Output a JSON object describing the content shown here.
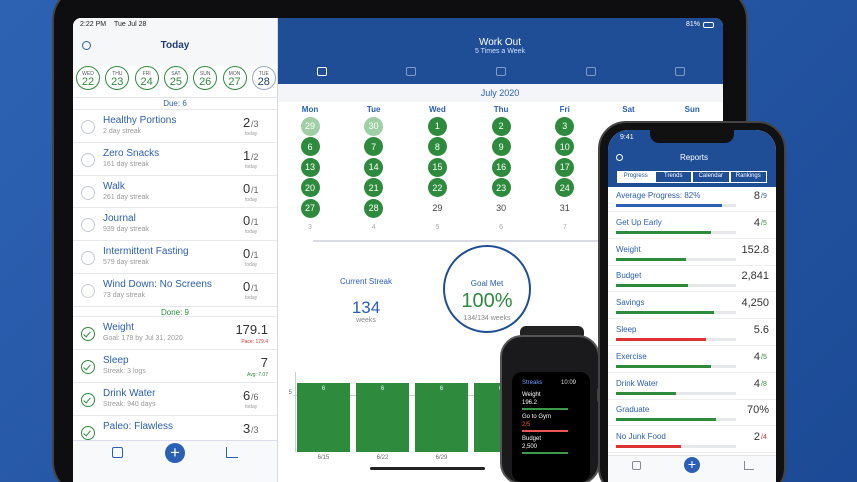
{
  "status": {
    "time": "2:22 PM",
    "date": "Tue Jul 28",
    "battery": "81%"
  },
  "sidebar": {
    "title": "Today",
    "days": [
      {
        "dow": "WED",
        "day": "22"
      },
      {
        "dow": "THU",
        "day": "23"
      },
      {
        "dow": "FRI",
        "day": "24"
      },
      {
        "dow": "SAT",
        "day": "25"
      },
      {
        "dow": "SUN",
        "day": "26"
      },
      {
        "dow": "MON",
        "day": "27"
      },
      {
        "dow": "TUE",
        "day": "28"
      }
    ],
    "due_label": "Due: 6",
    "due": [
      {
        "name": "Healthy Portions",
        "detail": "2 day streak",
        "count": "2",
        "of": "/3",
        "period": "today"
      },
      {
        "name": "Zero Snacks",
        "detail": "161 day streak",
        "count": "1",
        "of": "/2",
        "period": "today"
      },
      {
        "name": "Walk",
        "detail": "261 day streak",
        "count": "0",
        "of": "/1",
        "period": "today"
      },
      {
        "name": "Journal",
        "detail": "939 day streak",
        "count": "0",
        "of": "/1",
        "period": "today"
      },
      {
        "name": "Intermittent Fasting",
        "detail": "579 day streak",
        "count": "0",
        "of": "/1",
        "period": "today"
      },
      {
        "name": "Wind Down: No Screens",
        "detail": "73 day streak",
        "count": "0",
        "of": "/1",
        "period": "today"
      }
    ],
    "done_label": "Done: 9",
    "done": [
      {
        "name": "Weight",
        "detail": "Goal: 178 by Jul 31, 2020",
        "count": "179.1",
        "note": "Pace: 179.4",
        "note_color": "#d33"
      },
      {
        "name": "Sleep",
        "detail": "Streak: 3 logs",
        "count": "7",
        "note": "Avg: 7.07",
        "note_color": "#2e8b3e"
      },
      {
        "name": "Drink Water",
        "detail": "Streak: 940 days",
        "count": "6",
        "of": "/6",
        "period": "today"
      },
      {
        "name": "Paleo: Flawless",
        "count": "3",
        "of": "/3"
      }
    ]
  },
  "main": {
    "title": "Work Out",
    "subtitle": "5 Times a Week",
    "month": "July 2020",
    "weekdays": [
      "Mon",
      "Tue",
      "Wed",
      "Thu",
      "Fri",
      "Sat",
      "Sun"
    ],
    "weeks": [
      [
        {
          "day": "29",
          "state": "faded"
        },
        {
          "day": "30",
          "state": "faded"
        },
        {
          "day": "1",
          "state": "done"
        },
        {
          "day": "2",
          "state": "done"
        },
        {
          "day": "3",
          "state": "done"
        }
      ],
      [
        {
          "day": "6",
          "state": "done"
        },
        {
          "day": "7",
          "state": "done"
        },
        {
          "day": "8",
          "state": "done"
        },
        {
          "day": "9",
          "state": "done"
        },
        {
          "day": "10",
          "state": "done"
        }
      ],
      [
        {
          "day": "13",
          "state": "done"
        },
        {
          "day": "14",
          "state": "done"
        },
        {
          "day": "15",
          "state": "done"
        },
        {
          "day": "16",
          "state": "done"
        },
        {
          "day": "17",
          "state": "done"
        }
      ],
      [
        {
          "day": "20",
          "state": "done"
        },
        {
          "day": "21",
          "state": "done"
        },
        {
          "day": "22",
          "state": "done"
        },
        {
          "day": "23",
          "state": "done"
        },
        {
          "day": "24",
          "state": "done"
        }
      ],
      [
        {
          "day": "27",
          "state": "done"
        },
        {
          "day": "28",
          "state": "done"
        },
        {
          "day": "29",
          "state": "plain"
        },
        {
          "day": "30",
          "state": "plain"
        },
        {
          "day": "31",
          "state": "plain"
        }
      ],
      [
        {
          "day": "3",
          "state": "next"
        },
        {
          "day": "4",
          "state": "next"
        },
        {
          "day": "5",
          "state": "next"
        },
        {
          "day": "6",
          "state": "next"
        },
        {
          "day": "7",
          "state": "next"
        }
      ]
    ],
    "streak": {
      "label": "Current Streak",
      "value": "134",
      "unit": "weeks"
    },
    "goal": {
      "label": "Goal Met",
      "value": "100%",
      "detail": "134/134 weeks"
    }
  },
  "chart_data": {
    "type": "bar",
    "categories": [
      "6/15",
      "6/22",
      "6/29",
      null
    ],
    "values": [
      6,
      6,
      6,
      6
    ],
    "ylim": [
      0,
      7
    ],
    "yticks": [
      5
    ],
    "color": "#2e8b3e"
  },
  "phone": {
    "time": "9:41",
    "title": "Reports",
    "tabs": [
      "Progress",
      "Trends",
      "Calendar",
      "Rankings"
    ],
    "rows": [
      {
        "name": "Average Progress: 82%",
        "value": "8",
        "of": "/9",
        "color": "#2b5fb4"
      },
      {
        "name": "Get Up Early",
        "value": "4",
        "of": "/5",
        "color": "#2e8b3e"
      },
      {
        "name": "Weight",
        "value": "152.8",
        "color": "#2e8b3e"
      },
      {
        "name": "Budget",
        "value": "2,841",
        "color": "#2e8b3e"
      },
      {
        "name": "Savings",
        "value": "4,250",
        "color": "#2e8b3e"
      },
      {
        "name": "Sleep",
        "value": "5.6",
        "color": "#d33"
      },
      {
        "name": "Exercise",
        "value": "4",
        "of": "/5",
        "color": "#2e8b3e"
      },
      {
        "name": "Drink Water",
        "value": "4",
        "of": "/8",
        "color": "#2e8b3e"
      },
      {
        "name": "Graduate",
        "value": "70%",
        "color": "#2e8b3e"
      },
      {
        "name": "No Junk Food",
        "value": "2",
        "of": "/4",
        "color": "#d33"
      }
    ]
  },
  "watch": {
    "app": "Streaks",
    "time": "10:09",
    "items": [
      {
        "name": "Weight",
        "value": "196.2"
      },
      {
        "name": "Go to Gym",
        "value": "2/5"
      },
      {
        "name": "Budget",
        "value": "2,500"
      }
    ]
  }
}
